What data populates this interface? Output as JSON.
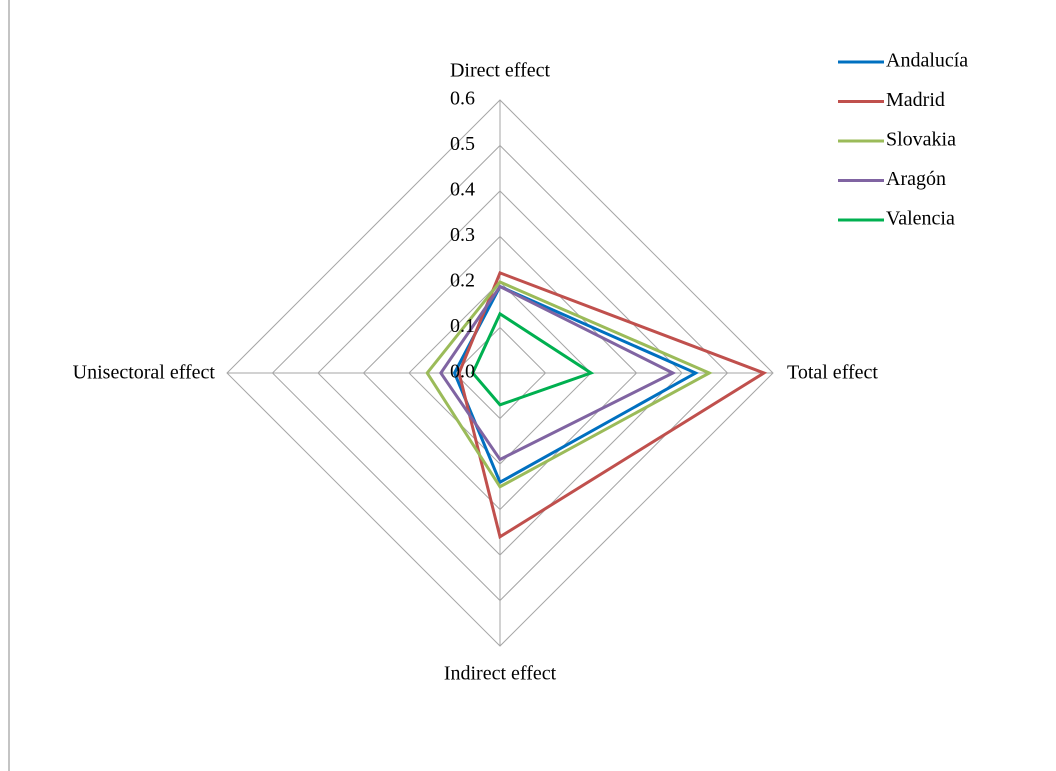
{
  "chart_data": {
    "type": "radar",
    "categories": [
      "Direct effect",
      "Total effect",
      "Indirect effect",
      "Unisectoral effect"
    ],
    "series": [
      {
        "name": "Andalucía",
        "color": "#0070c0",
        "values": [
          0.19,
          0.43,
          0.24,
          0.1
        ]
      },
      {
        "name": "Madrid",
        "color": "#c0504d",
        "values": [
          0.22,
          0.58,
          0.36,
          0.09
        ]
      },
      {
        "name": "Slovakia",
        "color": "#9bbb59",
        "values": [
          0.2,
          0.46,
          0.25,
          0.16
        ]
      },
      {
        "name": "Aragón",
        "color": "#8064a2",
        "values": [
          0.19,
          0.38,
          0.19,
          0.13
        ]
      },
      {
        "name": "Valencia",
        "color": "#00b050",
        "values": [
          0.13,
          0.2,
          0.07,
          0.06
        ]
      }
    ],
    "ylim": [
      0,
      0.6
    ],
    "yticks": [
      {
        "value": 0,
        "label": "0.0"
      },
      0.1,
      0.2,
      0.3,
      0.4,
      0.5,
      0.6
    ],
    "grid": true,
    "legend": "top-right"
  }
}
